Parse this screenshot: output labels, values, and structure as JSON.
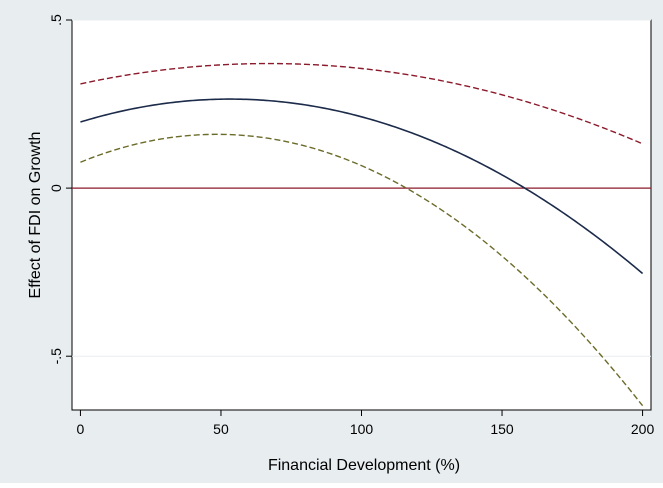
{
  "chart_data": {
    "type": "line",
    "title": "",
    "xlabel": "Financial Development (%)",
    "ylabel": "Effect of FDI on Growth",
    "xlim": [
      -3,
      203
    ],
    "ylim": [
      -0.66,
      0.5
    ],
    "xticks": [
      0,
      50,
      100,
      150,
      200
    ],
    "xtick_labels": [
      "0",
      "50",
      "100",
      "150",
      "200"
    ],
    "yticks": [
      -0.5,
      0,
      0.5
    ],
    "ytick_labels": [
      "-.5",
      "0",
      ".5"
    ],
    "grid": "horizontal",
    "legend": "none",
    "reference_line": {
      "y": 0,
      "color": "#8b1a2b"
    },
    "series": [
      {
        "style": "solid",
        "color": "#1c2b4a",
        "x": [
          0,
          25,
          50,
          75,
          100,
          125,
          150,
          175,
          200
        ],
        "y": [
          0.195,
          0.248,
          0.265,
          0.252,
          0.213,
          0.138,
          0.04,
          -0.09,
          -0.255
        ]
      },
      {
        "style": "dashed",
        "color": "#8b1a2b",
        "x": [
          0,
          25,
          50,
          75,
          100,
          125,
          150,
          175,
          200
        ],
        "y": [
          0.31,
          0.348,
          0.366,
          0.368,
          0.355,
          0.326,
          0.278,
          0.215,
          0.13
        ]
      },
      {
        "style": "dashed",
        "color": "#6b6b2a",
        "x": [
          0,
          25,
          50,
          75,
          100,
          125,
          150,
          175,
          200
        ],
        "y": [
          0.077,
          0.14,
          0.163,
          0.133,
          0.063,
          -0.045,
          -0.2,
          -0.4,
          -0.65
        ]
      }
    ]
  }
}
